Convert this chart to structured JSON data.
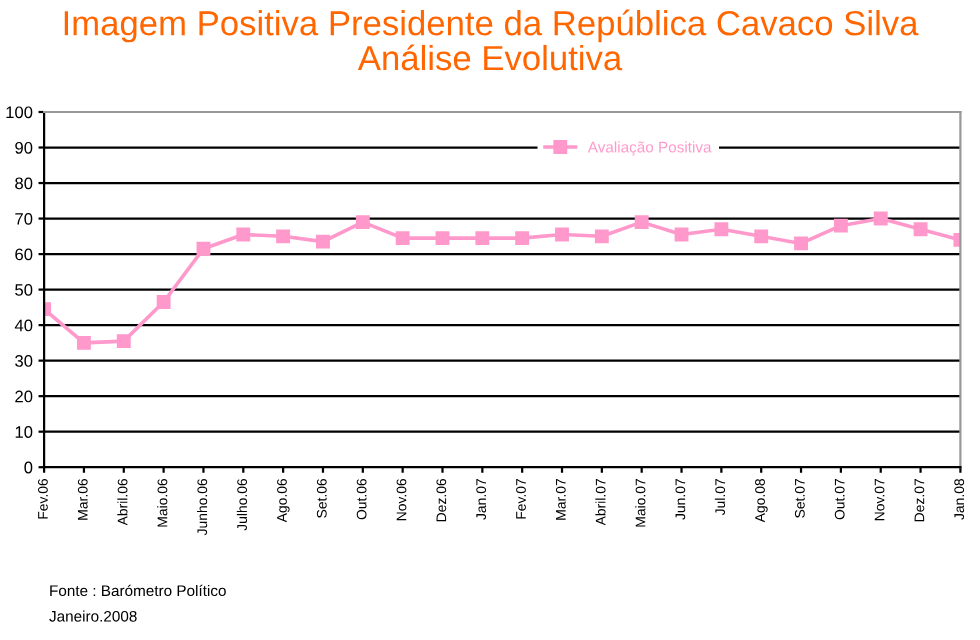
{
  "chart_data": {
    "type": "line",
    "title": "Imagem Positiva Presidente da República Cavaco Silva\nAnálise Evolutiva",
    "categories": [
      "Fev.06",
      "Mar.06",
      "Abril.06",
      "Maio.06",
      "Junho.06",
      "Julho.06",
      "Ago.06",
      "Set.06",
      "Out.06",
      "Nov.06",
      "Dez.06",
      "Jan.07",
      "Fev.07",
      "Mar.07",
      "Abril.07",
      "Maio.07",
      "Jun.07",
      "Jul.07",
      "Ago.08",
      "Set.07",
      "Out.07",
      "Nov.07",
      "Dez.07",
      "Jan.08"
    ],
    "series": [
      {
        "name": "Avaliação Positiva",
        "color": "#ff99cc",
        "values": [
          44.5,
          35,
          35.5,
          46.5,
          61.5,
          65.5,
          65,
          63.5,
          69,
          64.5,
          64.5,
          64.5,
          64.5,
          65.5,
          65,
          69,
          65.5,
          67,
          65,
          63,
          68,
          70,
          67,
          64
        ]
      }
    ],
    "ylim": [
      0,
      100
    ],
    "yticks": [
      0,
      10,
      20,
      30,
      40,
      50,
      60,
      70,
      80,
      90,
      100
    ],
    "grid": "y",
    "legend": "top right",
    "marker": "square",
    "line_style": "solid",
    "annotations": [
      "Fonte : Barómetro Político",
      "Janeiro.2008"
    ]
  }
}
